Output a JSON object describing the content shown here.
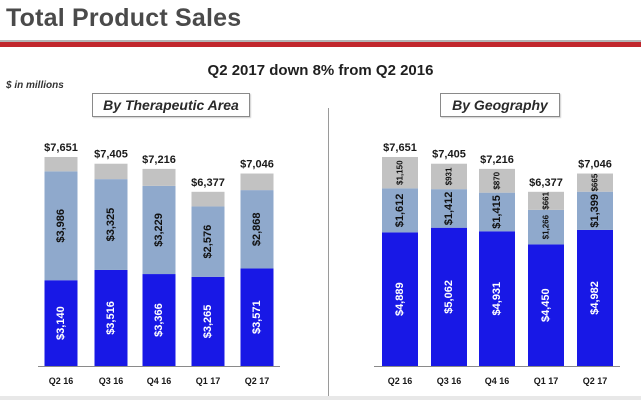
{
  "header": {
    "title": "Total Product Sales",
    "subtitle": "Q2 2017 down 8% from Q2 2016",
    "units": "$ in millions"
  },
  "colors": {
    "brand_red": "#c1272d",
    "segment_blue": "#1818e6",
    "segment_light_blue": "#8fa9cc",
    "segment_gray": "#c2c2c2"
  },
  "chart_data": [
    {
      "type": "bar",
      "stacked": true,
      "title": "By Therapeutic Area",
      "categories": [
        "Q2 16",
        "Q3 16",
        "Q4 16",
        "Q1 17",
        "Q2 17"
      ],
      "totals": [
        "$7,651",
        "$7,405",
        "$7,216",
        "$6,377",
        "$7,046"
      ],
      "total_values": [
        7651,
        7405,
        7216,
        6377,
        7046
      ],
      "series": [
        {
          "values": [
            3140,
            3516,
            3366,
            3265,
            3571
          ],
          "labels": [
            "$3,140",
            "$3,516",
            "$3,366",
            "$3,265",
            "$3,571"
          ],
          "color": "#1818e6"
        },
        {
          "values": [
            3986,
            3325,
            3229,
            2576,
            2868
          ],
          "labels": [
            "$3,986",
            "$3,325",
            "$3,229",
            "$2,576",
            "$2,868"
          ],
          "color": "#8fa9cc"
        },
        {
          "values": [
            525,
            564,
            621,
            536,
            607
          ],
          "labels": [
            "",
            "",
            "",
            "",
            ""
          ],
          "color": "#c2c2c2"
        }
      ],
      "grid": false
    },
    {
      "type": "bar",
      "stacked": true,
      "title": "By Geography",
      "categories": [
        "Q2 16",
        "Q3 16",
        "Q4 16",
        "Q1 17",
        "Q2 17"
      ],
      "totals": [
        "$7,651",
        "$7,405",
        "$7,216",
        "$6,377",
        "$7,046"
      ],
      "total_values": [
        7651,
        7405,
        7216,
        6377,
        7046
      ],
      "series": [
        {
          "values": [
            4889,
            5062,
            4931,
            4450,
            4982
          ],
          "labels": [
            "$4,889",
            "$5,062",
            "$4,931",
            "$4,450",
            "$4,982"
          ],
          "color": "#1818e6"
        },
        {
          "values": [
            1612,
            1412,
            1415,
            1266,
            1399
          ],
          "labels": [
            "$1,612",
            "$1,412",
            "$1,415",
            "$1,266",
            "$1,399"
          ],
          "color": "#8fa9cc"
        },
        {
          "values": [
            1150,
            931,
            870,
            661,
            665
          ],
          "labels": [
            "$1,150",
            "$931",
            "$870",
            "$661",
            "$665"
          ],
          "color": "#c2c2c2"
        }
      ],
      "grid": false
    }
  ]
}
